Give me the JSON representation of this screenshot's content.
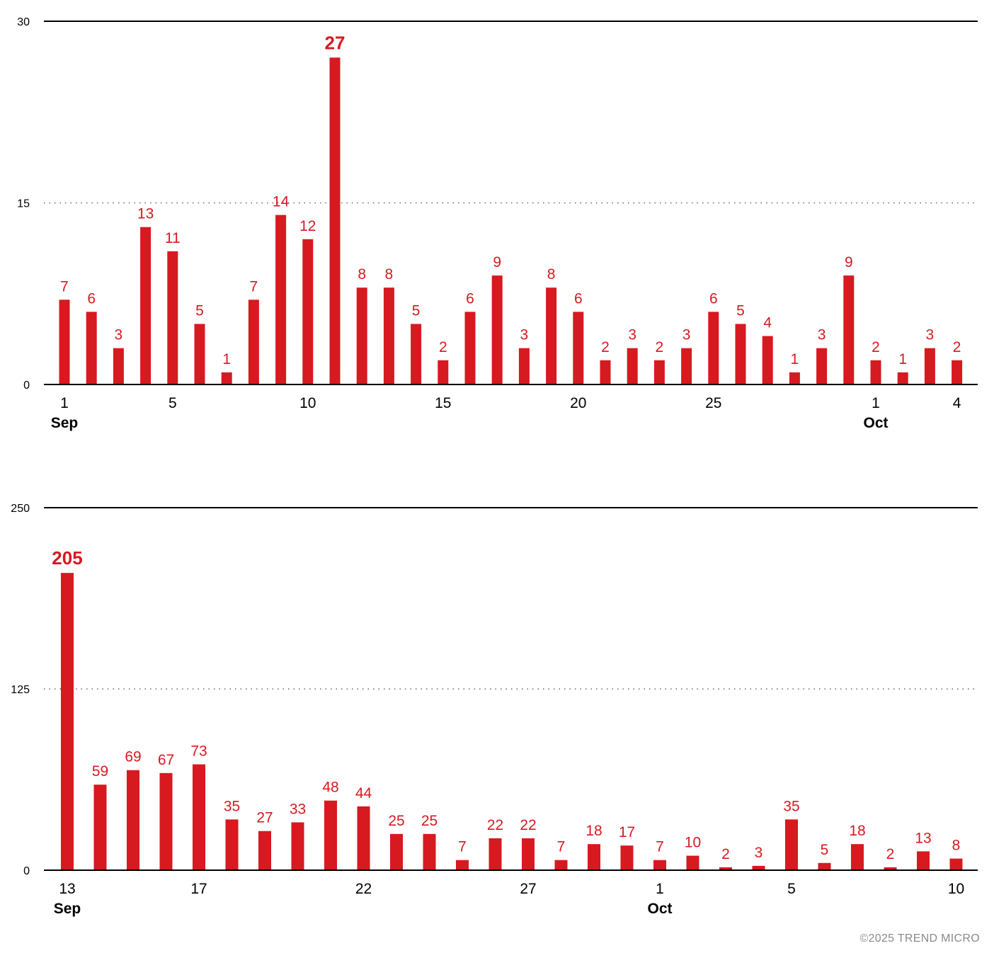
{
  "colors": {
    "bar": "#D71920",
    "label": "#D71920",
    "axis": "#000000",
    "grid_dotted": "#666666",
    "copyright": "#8a8a8a"
  },
  "copyright": "©2025 TREND MICRO",
  "chart_data": [
    {
      "type": "bar",
      "title": "",
      "xlabel": "",
      "ylabel": "",
      "x": [
        "2025-09-01",
        "2025-09-02",
        "2025-09-03",
        "2025-09-04",
        "2025-09-05",
        "2025-09-06",
        "2025-09-07",
        "2025-09-08",
        "2025-09-09",
        "2025-09-10",
        "2025-09-11",
        "2025-09-12",
        "2025-09-13",
        "2025-09-14",
        "2025-09-15",
        "2025-09-16",
        "2025-09-17",
        "2025-09-18",
        "2025-09-19",
        "2025-09-20",
        "2025-09-21",
        "2025-09-22",
        "2025-09-23",
        "2025-09-24",
        "2025-09-25",
        "2025-09-26",
        "2025-09-27",
        "2025-09-28",
        "2025-09-29",
        "2025-09-30",
        "2025-10-01",
        "2025-10-02",
        "2025-10-03",
        "2025-10-04"
      ],
      "values": [
        7,
        6,
        3,
        13,
        11,
        5,
        1,
        7,
        14,
        12,
        27,
        8,
        8,
        5,
        2,
        6,
        9,
        3,
        8,
        6,
        2,
        3,
        2,
        3,
        6,
        5,
        4,
        1,
        3,
        9,
        2,
        1,
        3,
        2
      ],
      "ylim": [
        0,
        30
      ],
      "yticks": [
        "0",
        "15",
        "30"
      ],
      "grid": "dotted line at 15",
      "highlight_max": true,
      "xtick_labels": [
        {
          "date": "2025-09-01",
          "day": "1",
          "month": "Sep"
        },
        {
          "date": "2025-09-05",
          "day": "5",
          "month": ""
        },
        {
          "date": "2025-09-10",
          "day": "10",
          "month": ""
        },
        {
          "date": "2025-09-15",
          "day": "15",
          "month": ""
        },
        {
          "date": "2025-09-20",
          "day": "20",
          "month": ""
        },
        {
          "date": "2025-09-25",
          "day": "25",
          "month": ""
        },
        {
          "date": "2025-10-01",
          "day": "1",
          "month": "Oct"
        },
        {
          "date": "2025-10-04",
          "day": "4",
          "month": ""
        }
      ]
    },
    {
      "type": "bar",
      "title": "",
      "xlabel": "",
      "ylabel": "",
      "x": [
        "2025-09-13",
        "2025-09-14",
        "2025-09-15",
        "2025-09-16",
        "2025-09-17",
        "2025-09-18",
        "2025-09-19",
        "2025-09-20",
        "2025-09-21",
        "2025-09-22",
        "2025-09-23",
        "2025-09-24",
        "2025-09-25",
        "2025-09-26",
        "2025-09-27",
        "2025-09-28",
        "2025-09-29",
        "2025-09-30",
        "2025-10-01",
        "2025-10-02",
        "2025-10-03",
        "2025-10-04",
        "2025-10-05",
        "2025-10-06",
        "2025-10-07",
        "2025-10-08",
        "2025-10-09",
        "2025-10-10"
      ],
      "values": [
        205,
        59,
        69,
        67,
        73,
        35,
        27,
        33,
        48,
        44,
        25,
        25,
        7,
        22,
        22,
        7,
        18,
        17,
        7,
        10,
        2,
        3,
        35,
        5,
        18,
        2,
        13,
        8
      ],
      "ylim": [
        0,
        250
      ],
      "yticks": [
        "0",
        "125",
        "250"
      ],
      "grid": "dotted line at 125",
      "highlight_max": true,
      "xtick_labels": [
        {
          "date": "2025-09-13",
          "day": "13",
          "month": "Sep"
        },
        {
          "date": "2025-09-17",
          "day": "17",
          "month": ""
        },
        {
          "date": "2025-09-22",
          "day": "22",
          "month": ""
        },
        {
          "date": "2025-09-27",
          "day": "27",
          "month": ""
        },
        {
          "date": "2025-10-01",
          "day": "1",
          "month": "Oct"
        },
        {
          "date": "2025-10-05",
          "day": "5",
          "month": ""
        },
        {
          "date": "2025-10-10",
          "day": "10",
          "month": ""
        }
      ]
    }
  ]
}
